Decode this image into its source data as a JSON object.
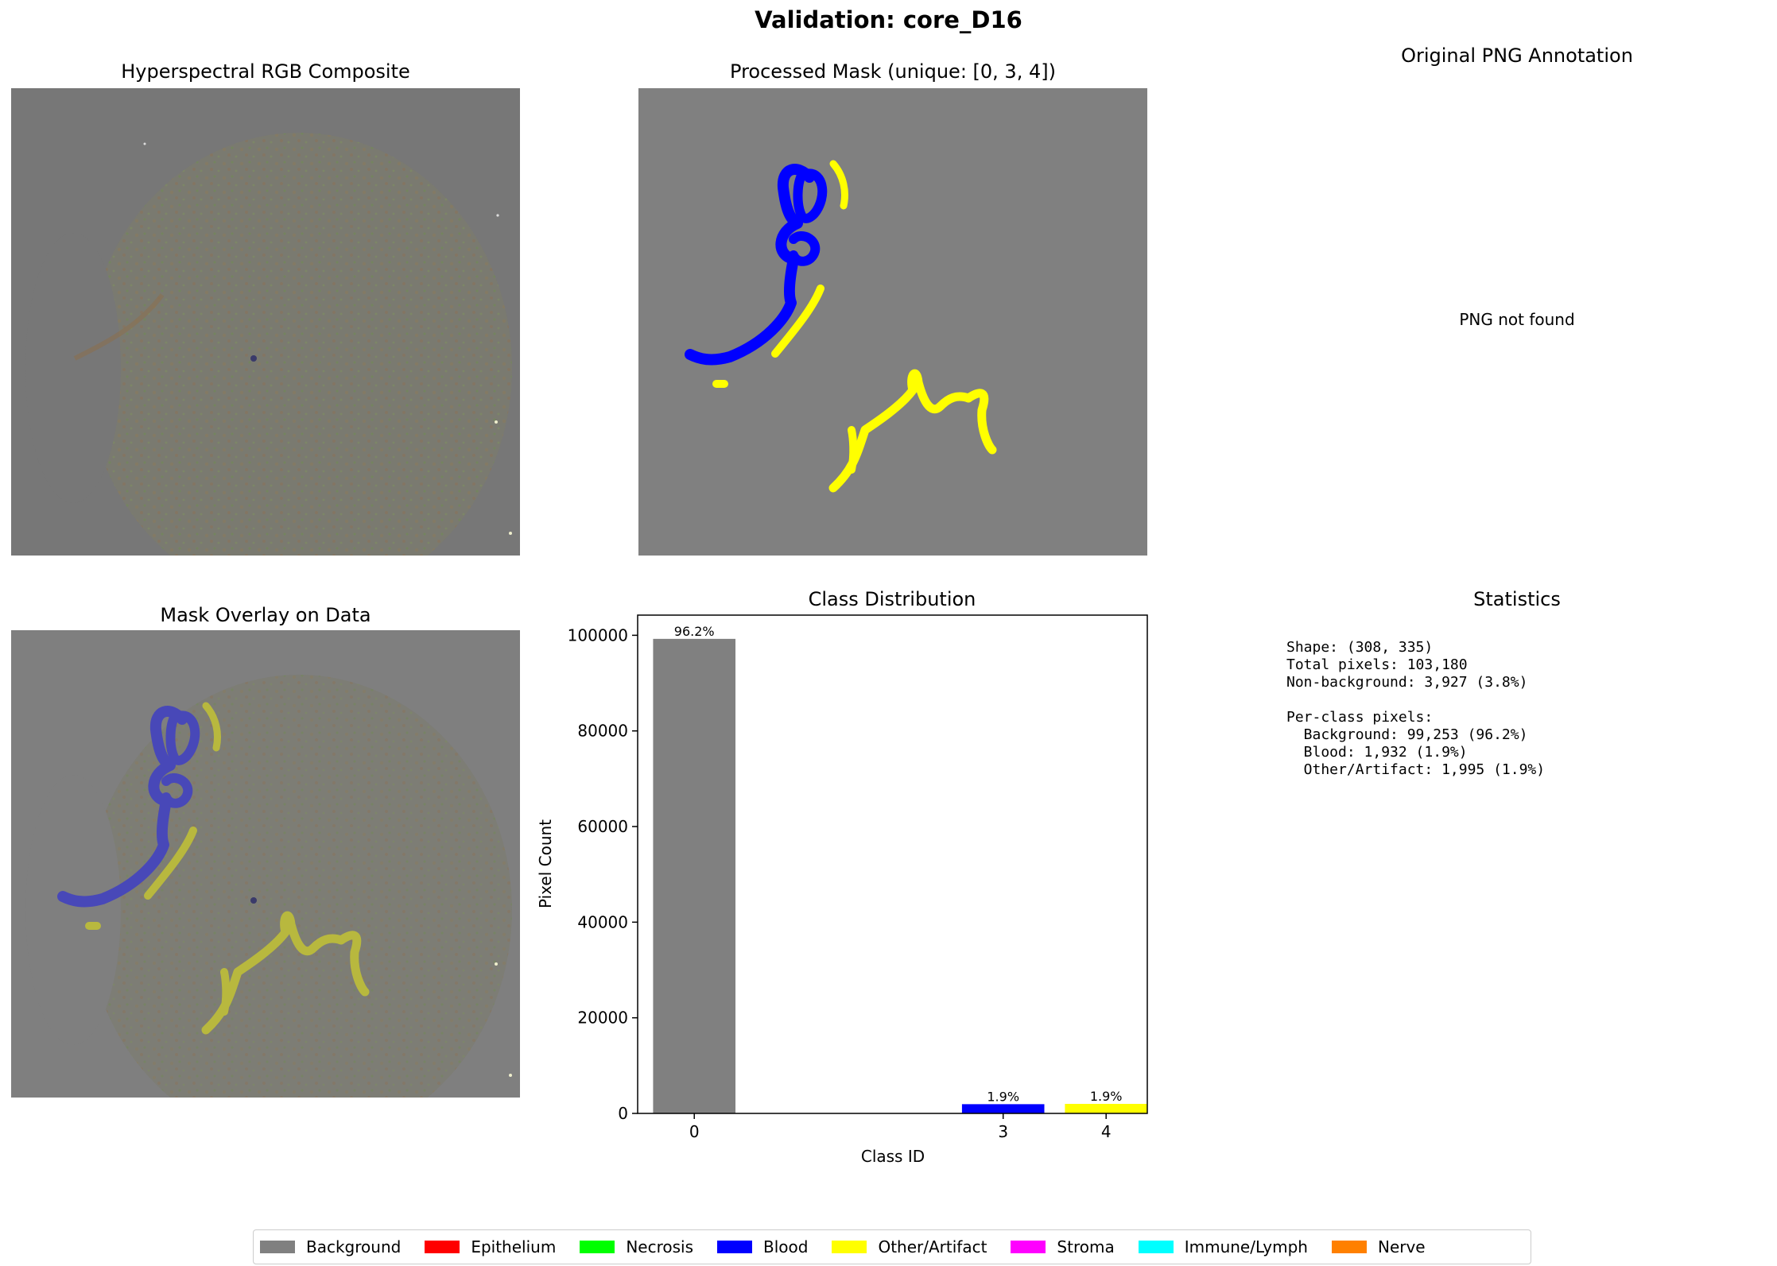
{
  "figure": {
    "title": "Validation: core_D16"
  },
  "panels": {
    "rgb": {
      "title": "Hyperspectral RGB Composite"
    },
    "mask": {
      "title": "Processed Mask (unique: [0, 3, 4])"
    },
    "png": {
      "title": "Original PNG Annotation",
      "message": "PNG not found"
    },
    "overlay": {
      "title": "Mask Overlay on Data"
    },
    "stats": {
      "title": "Statistics",
      "lines": [
        "Shape: (308, 335)",
        "Total pixels: 103,180",
        "Non-background: 3,927 (3.8%)",
        "",
        "Per-class pixels:",
        "  Background: 99,253 (96.2%)",
        "  Blood: 1,932 (1.9%)",
        "  Other/Artifact: 1,995 (1.9%)"
      ]
    }
  },
  "chart_data": {
    "type": "bar",
    "title": "Class Distribution",
    "xlabel": "Class ID",
    "ylabel": "Pixel Count",
    "categories": [
      "0",
      "3",
      "4"
    ],
    "values": [
      99253,
      1932,
      1995
    ],
    "bar_labels": [
      "96.2%",
      "1.9%",
      "1.9%"
    ],
    "colors": [
      "#808080",
      "#0000ff",
      "#ffff00"
    ],
    "ylim": [
      0,
      104218
    ],
    "yticks": [
      0,
      20000,
      40000,
      60000,
      80000,
      100000
    ],
    "ytick_labels": [
      "0",
      "20000",
      "40000",
      "60000",
      "80000",
      "100000"
    ]
  },
  "legend": {
    "entries": [
      {
        "label": "Background",
        "color": "#808080"
      },
      {
        "label": "Epithelium",
        "color": "#ff0000"
      },
      {
        "label": "Necrosis",
        "color": "#00ff00"
      },
      {
        "label": "Blood",
        "color": "#0000ff"
      },
      {
        "label": "Other/Artifact",
        "color": "#ffff00"
      },
      {
        "label": "Stroma",
        "color": "#ff00ff"
      },
      {
        "label": "Immune/Lymph",
        "color": "#00ffff"
      },
      {
        "label": "Nerve",
        "color": "#ff8000"
      }
    ]
  }
}
